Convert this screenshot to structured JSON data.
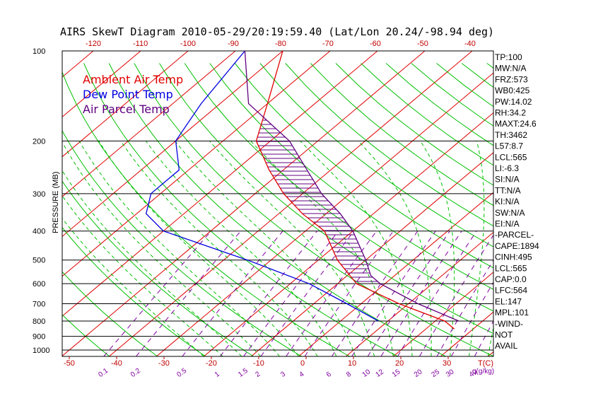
{
  "chart_data": {
    "type": "line",
    "title": "AIRS SkewT Diagram 2010-05-29/20:19:59.40 (Lat/Lon 20.24/-98.94 deg)",
    "ylabel": "PRESSURE (MB)",
    "xlabel": "T(C)",
    "mixing_label": "q(g/kg)",
    "ylim": [
      1050,
      100
    ],
    "pressure_ticks": [
      100,
      200,
      300,
      400,
      500,
      600,
      700,
      800,
      900,
      1000
    ],
    "temp_ticks_bottom": [
      -50,
      -40,
      -30,
      -20,
      -10,
      0,
      10,
      20,
      30
    ],
    "temp_ticks_top": [
      -120,
      -110,
      -100,
      -90,
      -80,
      -70,
      -60,
      -50,
      -40
    ],
    "mixing_ratio_labels": [
      "0.1",
      "0.2",
      "0.5",
      "1",
      "1.5",
      "2",
      "3",
      "4",
      "6",
      "8",
      "10",
      "12",
      "15",
      "20",
      "25",
      "30",
      "40"
    ],
    "legend": [
      {
        "name": "Ambient Air Temp",
        "color": "#e00000"
      },
      {
        "name": "Dew Point Temp",
        "color": "#0000e0"
      },
      {
        "name": "Air Parcel Temp",
        "color": "#600080"
      }
    ],
    "series": [
      {
        "name": "Ambient Air Temp",
        "color": "#e00000",
        "points": [
          [
            100,
            -80
          ],
          [
            150,
            -70
          ],
          [
            200,
            -63
          ],
          [
            250,
            -53
          ],
          [
            300,
            -44
          ],
          [
            350,
            -35
          ],
          [
            400,
            -26
          ],
          [
            500,
            -16
          ],
          [
            600,
            -6
          ],
          [
            700,
            8
          ],
          [
            800,
            22
          ],
          [
            850,
            26
          ]
        ]
      },
      {
        "name": "Dew Point Temp",
        "color": "#0000e0",
        "points": [
          [
            100,
            -88
          ],
          [
            150,
            -84
          ],
          [
            200,
            -80
          ],
          [
            250,
            -72
          ],
          [
            300,
            -72
          ],
          [
            350,
            -68
          ],
          [
            400,
            -60
          ],
          [
            500,
            -35
          ],
          [
            600,
            -16
          ],
          [
            700,
            -3
          ],
          [
            800,
            8
          ]
        ]
      },
      {
        "name": "Air Parcel Temp",
        "color": "#600080",
        "points": [
          [
            100,
            -88
          ],
          [
            150,
            -74
          ],
          [
            200,
            -56
          ],
          [
            250,
            -45
          ],
          [
            300,
            -36
          ],
          [
            350,
            -27
          ],
          [
            400,
            -20
          ],
          [
            500,
            -10
          ],
          [
            564,
            -5
          ],
          [
            600,
            -1
          ],
          [
            700,
            12
          ],
          [
            800,
            25
          ]
        ]
      }
    ]
  },
  "side_panel": [
    "TP:100",
    "MW:N/A",
    "FRZ:573",
    "WB0:425",
    "PW:14.02",
    "RH:34.2",
    "MAXT:24.6",
    "TH:3462",
    "L57:8.7",
    "LCL:565",
    "LI:-6.3",
    "SI:N/A",
    "TT:N/A",
    "KI:N/A",
    "SW:N/A",
    "EI:N/A",
    "-PARCEL-",
    "CAPE:1894",
    "CINH:495",
    "LCL:565",
    "CAP:0.0",
    "LFC:564",
    "EL:147",
    "MPL:101",
    "-WIND-",
    "NOT",
    "AVAIL"
  ]
}
